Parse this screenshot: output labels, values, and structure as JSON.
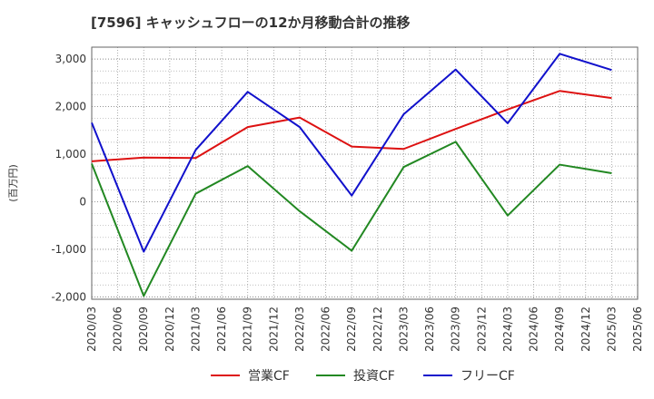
{
  "chart_data": {
    "type": "line",
    "title": "[7596]  キャッシュフローの12か月移動合計の推移",
    "ylabel": "(百万円)",
    "xlabel": "",
    "ylim": [
      -2050,
      3250
    ],
    "yticks": [
      -2000,
      -1000,
      0,
      1000,
      2000,
      3000
    ],
    "ytick_labels": [
      "-2,000",
      "-1,000",
      "0",
      "1,000",
      "2,000",
      "3,000"
    ],
    "x_tick_labels": [
      "2020/03",
      "2020/06",
      "2020/09",
      "2020/12",
      "2021/03",
      "2021/06",
      "2021/09",
      "2021/12",
      "2022/03",
      "2022/06",
      "2022/09",
      "2022/12",
      "2023/03",
      "2023/06",
      "2023/09",
      "2023/12",
      "2024/03",
      "2024/06",
      "2024/09",
      "2024/12",
      "2025/03",
      "2025/06"
    ],
    "grid": true,
    "legend_position": "bottom",
    "series": [
      {
        "name": "営業CF",
        "color": "#dd1111",
        "x": [
          "2020/03",
          "2020/09",
          "2021/03",
          "2021/09",
          "2022/03",
          "2022/09",
          "2023/03",
          "2023/09",
          "2024/03",
          "2024/09",
          "2025/03"
        ],
        "values": [
          850,
          930,
          920,
          1570,
          1770,
          1160,
          1110,
          1530,
          1940,
          2330,
          2180
        ]
      },
      {
        "name": "投資CF",
        "color": "#228822",
        "x": [
          "2020/03",
          "2020/09",
          "2021/03",
          "2021/09",
          "2022/03",
          "2022/09",
          "2023/03",
          "2023/09",
          "2024/03",
          "2024/09",
          "2025/03"
        ],
        "values": [
          800,
          -1980,
          170,
          750,
          -200,
          -1030,
          730,
          1260,
          -290,
          780,
          600
        ]
      },
      {
        "name": "フリーCF",
        "color": "#1111cc",
        "x": [
          "2020/03",
          "2020/09",
          "2021/03",
          "2021/09",
          "2022/03",
          "2022/09",
          "2023/03",
          "2023/09",
          "2024/03",
          "2024/09",
          "2025/03"
        ],
        "values": [
          1660,
          -1050,
          1090,
          2310,
          1570,
          130,
          1840,
          2780,
          1650,
          3110,
          2770
        ]
      }
    ]
  }
}
